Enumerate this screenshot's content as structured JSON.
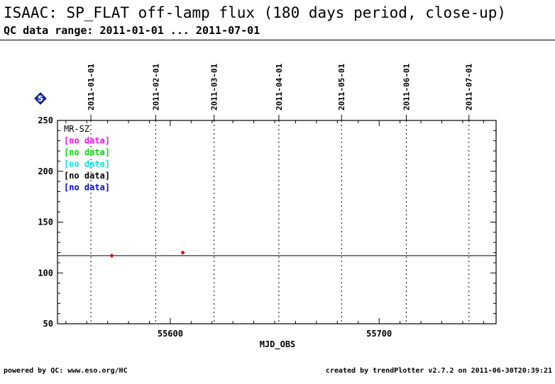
{
  "header": {
    "title": "ISAAC: SP_FLAT off-lamp flux (180 days period, close-up)",
    "subtitle": "QC data range: 2011-01-01 ... 2011-07-01"
  },
  "badge": {
    "label": "5",
    "color": "#1a3ad6"
  },
  "footer": {
    "left": "powered by QC: www.eso.org/HC",
    "right": "created by trendPlotter v2.7.2 on 2011-06-30T20:39:21"
  },
  "chart_data": {
    "type": "scatter",
    "xlabel": "MJD_OBS",
    "ylabel": "",
    "xlim": [
      55546,
      55756
    ],
    "ylim": [
      50,
      250
    ],
    "x_ticks": [
      55600,
      55700
    ],
    "y_ticks": [
      50,
      100,
      150,
      200,
      250
    ],
    "date_markers": [
      {
        "label": "2011-01-01",
        "mjd": 55562
      },
      {
        "label": "2011-02-01",
        "mjd": 55593
      },
      {
        "label": "2011-03-01",
        "mjd": 55621
      },
      {
        "label": "2011-04-01",
        "mjd": 55652
      },
      {
        "label": "2011-05-01",
        "mjd": 55682
      },
      {
        "label": "2011-06-01",
        "mjd": 55713
      },
      {
        "label": "2011-07-01",
        "mjd": 55743
      }
    ],
    "reference_line": 117,
    "legend": [
      {
        "text": "MR-SZ",
        "color": "#000000"
      },
      {
        "text": "[no data]",
        "color": "#ff00ff"
      },
      {
        "text": "[no data]",
        "color": "#00dd00"
      },
      {
        "text": "[no data]",
        "color": "#00e5e5"
      },
      {
        "text": "[no data]",
        "color": "#000000"
      },
      {
        "text": "[no data]",
        "color": "#0000ff"
      }
    ],
    "legend_placement": "top-left",
    "series": [
      {
        "name": "MR-SZ",
        "color": "#dd0000",
        "points": [
          [
            55572,
            117
          ],
          [
            55606,
            120
          ]
        ]
      }
    ]
  }
}
